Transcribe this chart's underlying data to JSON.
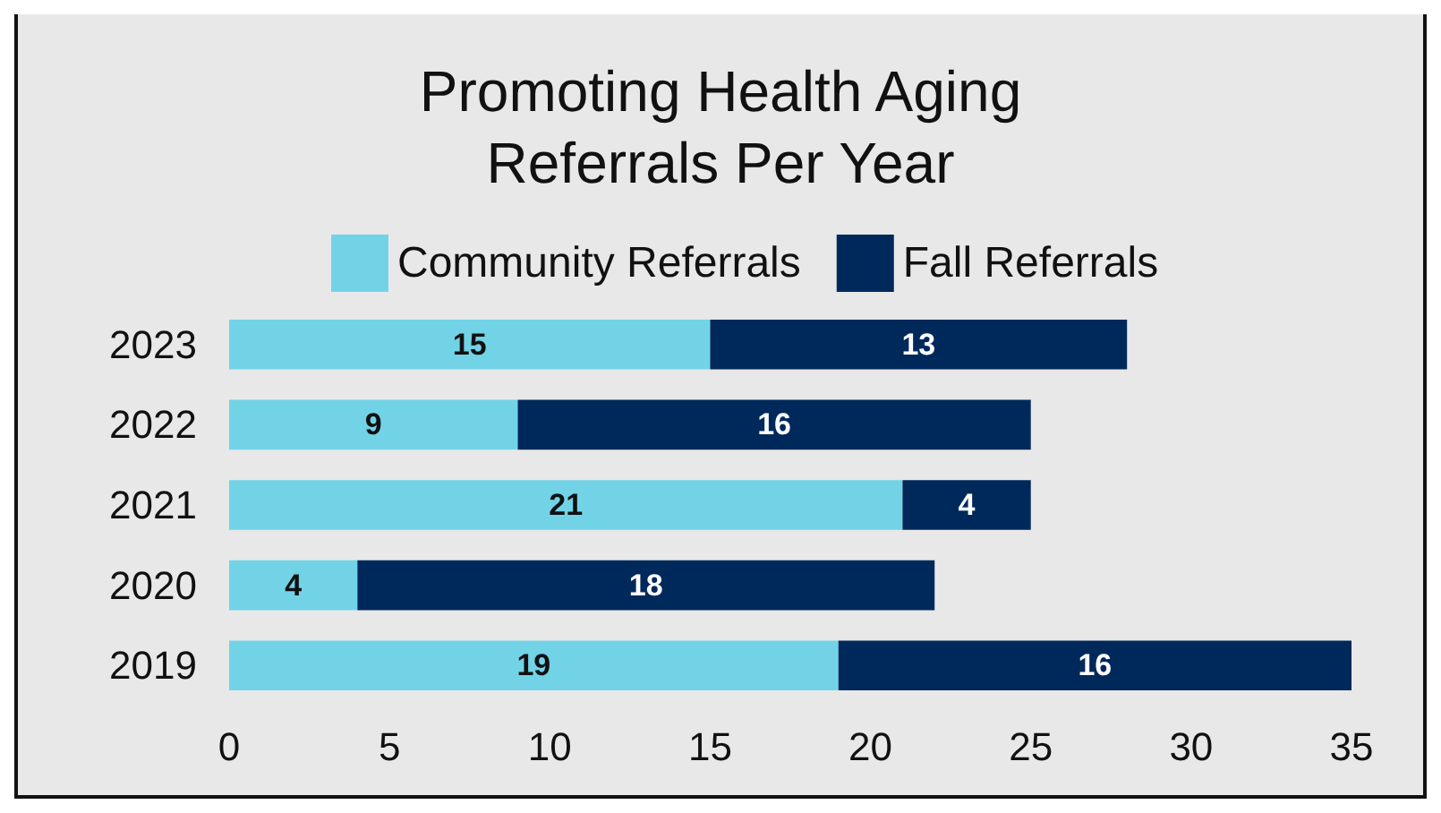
{
  "chart_data": {
    "type": "bar",
    "title": "Promoting Health Aging\nReferrals Per Year",
    "orientation": "horizontal",
    "stacked": true,
    "categories": [
      "2023",
      "2022",
      "2021",
      "2020",
      "2019"
    ],
    "series": [
      {
        "name": "Community Referrals",
        "color": "#72d3e7",
        "values": [
          15,
          9,
          21,
          4,
          19
        ]
      },
      {
        "name": "Fall Referrals",
        "color": "#00295b",
        "values": [
          13,
          16,
          4,
          18,
          16
        ]
      }
    ],
    "xlim": [
      0,
      35
    ],
    "xticks": [
      0,
      5,
      10,
      15,
      20,
      25,
      30,
      35
    ],
    "grid": false,
    "legend": "top",
    "data_labels": true
  }
}
